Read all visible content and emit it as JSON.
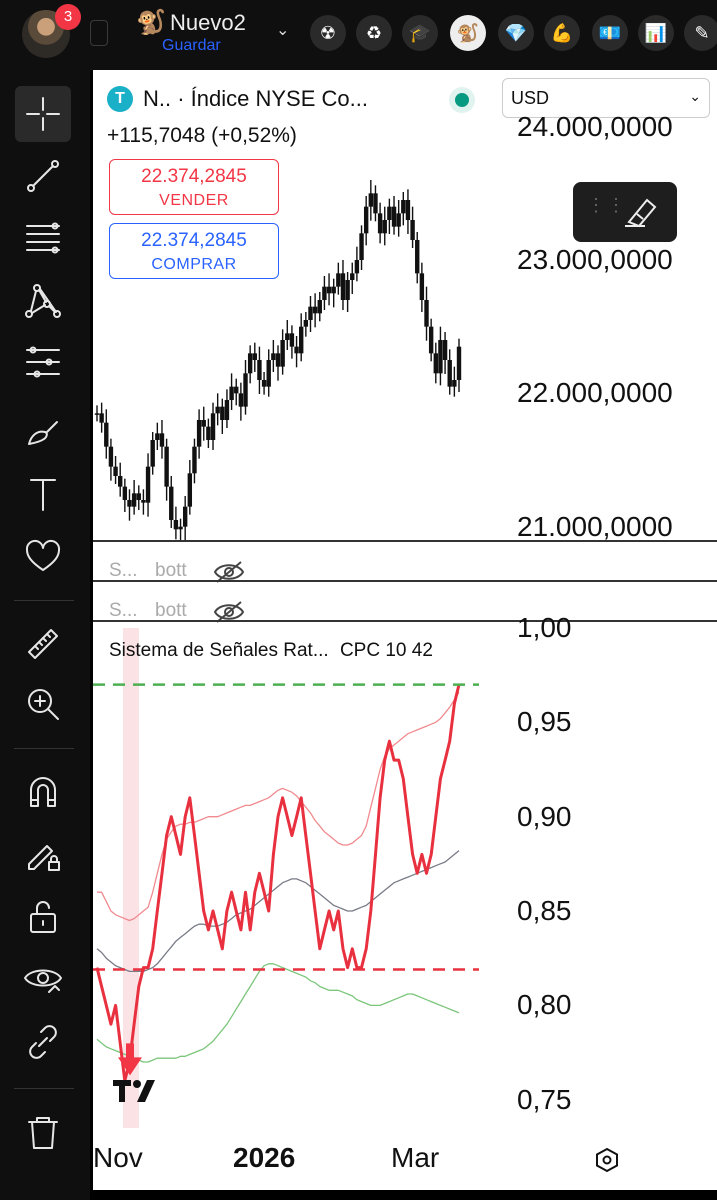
{
  "topbar": {
    "notification_count": "3",
    "layout_name": "Nuevo2",
    "layout_save": "Guardar",
    "chevron": "⌄",
    "icons": [
      "radiation-icon",
      "recycle-icon",
      "graduation-cap-icon",
      "monkey-icon",
      "diamond-icon",
      "muscle-icon",
      "banknote-icon",
      "bar-chart-icon",
      "pencil-icon"
    ]
  },
  "toolbar": {
    "tools": [
      "crosshair-icon",
      "trend-line-icon",
      "fib-retracement-icon",
      "pattern-icon",
      "prediction-icon",
      "brush-icon",
      "text-icon",
      "heart-icon",
      "ruler-icon",
      "zoom-in-icon",
      "magnet-icon",
      "lock-drawing-icon",
      "unlock-icon",
      "eye-icon",
      "link-icon",
      "trash-icon"
    ]
  },
  "header": {
    "symbol_logo": "T",
    "title": "N.. · Índice NYSE Co...",
    "currency": "USD",
    "change": "+115,7048 (+0,52%)",
    "sell_price": "22.374,2845",
    "sell_label": "VENDER",
    "buy_price": "22.374,2845",
    "buy_label": "COMPRAR"
  },
  "panes": {
    "mini1_s": "S...",
    "mini1_b": "bott",
    "mini2_s": "S...",
    "mini2_b": "bott"
  },
  "indicator": {
    "title": "Sistema de Señales Rat...",
    "params": "CPC 10 42"
  },
  "chart_data": [
    {
      "type": "candlestick",
      "title": "N.. · Índice NYSE Co...",
      "y_tick_labels": [
        "24.000,0000",
        "23.000,0000",
        "22.000,0000",
        "21.000,0000"
      ],
      "y_ticks": [
        24000,
        23000,
        22000,
        21000
      ],
      "ylim": [
        20900,
        24050
      ],
      "x_tick_labels": [
        "Nov",
        "2026",
        "Mar"
      ],
      "closes": [
        21850,
        21780,
        21600,
        21450,
        21380,
        21300,
        21200,
        21150,
        21250,
        21200,
        21180,
        21450,
        21650,
        21700,
        21600,
        21300,
        21050,
        20980,
        21000,
        21150,
        21400,
        21600,
        21800,
        21750,
        21650,
        21850,
        21900,
        21800,
        21950,
        22050,
        22000,
        21900,
        22150,
        22300,
        22250,
        22100,
        22050,
        22250,
        22300,
        22200,
        22400,
        22450,
        22350,
        22300,
        22500,
        22550,
        22650,
        22600,
        22700,
        22800,
        22750,
        22800,
        22900,
        22700,
        22850,
        22900,
        23000,
        23200,
        23400,
        23500,
        23350,
        23200,
        23300,
        23400,
        23250,
        23350,
        23450,
        23300,
        23150,
        22900,
        22700,
        22500,
        22300,
        22150,
        22400,
        22250,
        22050,
        22100,
        22350
      ]
    },
    {
      "type": "line",
      "title": "Sistema de Señales Rat...",
      "y_tick_labels": [
        "1,00",
        "0,95",
        "0,90",
        "0,85",
        "0,80",
        "0,75"
      ],
      "y_ticks": [
        1.0,
        0.95,
        0.9,
        0.85,
        0.8,
        0.75
      ],
      "ylim": [
        0.735,
        1.0
      ],
      "threshold_upper": 0.97,
      "threshold_lower": 0.819,
      "colors": {
        "main": "#e8303f",
        "upper_band": "#f08a8f",
        "middle": "#787b86",
        "lower_band": "#7bc67b",
        "upper_threshold": "#4caf50",
        "lower_threshold": "#e8303f"
      },
      "series": [
        {
          "values": [
            0.82,
            0.81,
            0.8,
            0.79,
            0.8,
            0.78,
            0.76,
            0.77,
            0.79,
            0.81,
            0.82,
            0.82,
            0.83,
            0.85,
            0.87,
            0.89,
            0.9,
            0.89,
            0.88,
            0.9,
            0.91,
            0.89,
            0.87,
            0.85,
            0.84,
            0.85,
            0.84,
            0.83,
            0.85,
            0.86,
            0.85,
            0.84,
            0.86,
            0.84,
            0.86,
            0.87,
            0.86,
            0.85,
            0.88,
            0.9,
            0.91,
            0.9,
            0.89,
            0.9,
            0.91,
            0.89,
            0.87,
            0.85,
            0.83,
            0.84,
            0.85,
            0.84,
            0.85,
            0.83,
            0.82,
            0.83,
            0.82,
            0.82,
            0.83,
            0.85,
            0.88,
            0.91,
            0.93,
            0.94,
            0.93,
            0.93,
            0.92,
            0.9,
            0.88,
            0.87,
            0.88,
            0.87,
            0.88,
            0.9,
            0.92,
            0.93,
            0.94,
            0.96,
            0.97
          ]
        },
        {
          "values": [
            0.86,
            0.86,
            0.855,
            0.85,
            0.848,
            0.847,
            0.846,
            0.845,
            0.846,
            0.848,
            0.85,
            0.852,
            0.86,
            0.87,
            0.88,
            0.888,
            0.892,
            0.895,
            0.896,
            0.896,
            0.897,
            0.897,
            0.898,
            0.899,
            0.9,
            0.9,
            0.9,
            0.901,
            0.902,
            0.903,
            0.904,
            0.905,
            0.906,
            0.906,
            0.907,
            0.908,
            0.909,
            0.91,
            0.912,
            0.914,
            0.915,
            0.914,
            0.913,
            0.911,
            0.908,
            0.905,
            0.902,
            0.898,
            0.895,
            0.892,
            0.89,
            0.888,
            0.886,
            0.885,
            0.885,
            0.886,
            0.888,
            0.89,
            0.895,
            0.905,
            0.915,
            0.925,
            0.932,
            0.936,
            0.938,
            0.94,
            0.942,
            0.944,
            0.945,
            0.946,
            0.947,
            0.948,
            0.949,
            0.95,
            0.952,
            0.955,
            0.958,
            0.962,
            0.966
          ]
        },
        {
          "values": [
            0.83,
            0.828,
            0.825,
            0.823,
            0.821,
            0.82,
            0.819,
            0.818,
            0.818,
            0.818,
            0.818,
            0.819,
            0.82,
            0.822,
            0.825,
            0.828,
            0.831,
            0.834,
            0.836,
            0.838,
            0.84,
            0.842,
            0.843,
            0.843,
            0.842,
            0.842,
            0.842,
            0.843,
            0.844,
            0.846,
            0.848,
            0.849,
            0.85,
            0.851,
            0.853,
            0.855,
            0.857,
            0.859,
            0.861,
            0.863,
            0.865,
            0.866,
            0.867,
            0.867,
            0.866,
            0.865,
            0.863,
            0.861,
            0.859,
            0.857,
            0.855,
            0.853,
            0.852,
            0.851,
            0.85,
            0.85,
            0.851,
            0.852,
            0.853,
            0.855,
            0.857,
            0.859,
            0.861,
            0.863,
            0.865,
            0.866,
            0.867,
            0.868,
            0.869,
            0.87,
            0.871,
            0.872,
            0.873,
            0.874,
            0.875,
            0.876,
            0.878,
            0.88,
            0.882
          ]
        },
        {
          "values": [
            0.782,
            0.78,
            0.778,
            0.777,
            0.776,
            0.775,
            0.774,
            0.773,
            0.772,
            0.771,
            0.77,
            0.77,
            0.771,
            0.772,
            0.772,
            0.772,
            0.772,
            0.772,
            0.773,
            0.773,
            0.774,
            0.775,
            0.776,
            0.777,
            0.779,
            0.781,
            0.784,
            0.787,
            0.79,
            0.794,
            0.798,
            0.802,
            0.806,
            0.81,
            0.814,
            0.818,
            0.821,
            0.822,
            0.822,
            0.821,
            0.82,
            0.819,
            0.818,
            0.817,
            0.816,
            0.815,
            0.813,
            0.812,
            0.81,
            0.809,
            0.808,
            0.808,
            0.808,
            0.807,
            0.806,
            0.805,
            0.803,
            0.802,
            0.801,
            0.8,
            0.8,
            0.8,
            0.801,
            0.802,
            0.803,
            0.804,
            0.805,
            0.806,
            0.806,
            0.805,
            0.804,
            0.803,
            0.802,
            0.801,
            0.8,
            0.799,
            0.798,
            0.797,
            0.796
          ]
        }
      ]
    }
  ]
}
